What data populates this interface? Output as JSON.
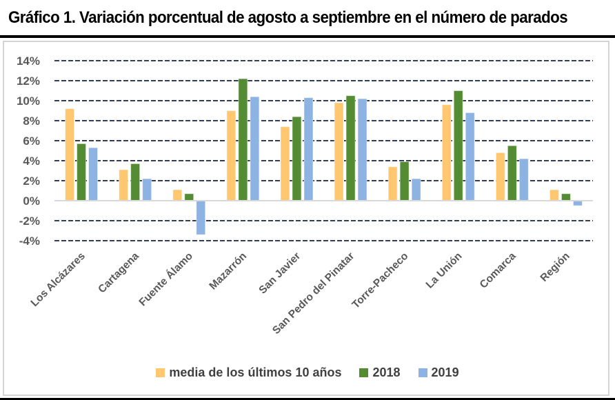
{
  "title": "Gráfico 1. Variación porcentual de agosto a septiembre en el número de parados",
  "chart_data": {
    "type": "bar",
    "title": "Gráfico 1. Variación porcentual de agosto a septiembre en el número de parados",
    "xlabel": "",
    "ylabel": "",
    "ylim": [
      -4,
      14
    ],
    "yticks": [
      14,
      12,
      10,
      8,
      6,
      4,
      2,
      0,
      -2,
      -4
    ],
    "ytick_labels": [
      "14%",
      "12%",
      "10%",
      "8%",
      "6%",
      "4%",
      "2%",
      "0%",
      "-2%",
      "-4%"
    ],
    "grid": true,
    "grid_style": "dashed",
    "legend_position": "bottom",
    "categories": [
      "Los Alcázares",
      "Cartagena",
      "Fuente Álamo",
      "Mazarrón",
      "San Javier",
      "San Pedro del Pinatar",
      "Torre-Pacheco",
      "La Unión",
      "Comarca",
      "Región"
    ],
    "series": [
      {
        "name": "media de los últimos 10 años",
        "color": "#FFC870",
        "values": [
          9.2,
          3.1,
          1.1,
          9.0,
          7.4,
          9.8,
          3.4,
          9.6,
          4.8,
          1.1
        ]
      },
      {
        "name": "2018",
        "color": "#548C34",
        "values": [
          5.7,
          3.7,
          0.7,
          12.2,
          8.4,
          10.5,
          3.9,
          11.0,
          5.5,
          0.7
        ]
      },
      {
        "name": "2019",
        "color": "#8DB3E2",
        "values": [
          5.3,
          2.2,
          -3.4,
          10.4,
          10.3,
          10.2,
          2.2,
          8.8,
          4.2,
          -0.5
        ]
      }
    ],
    "grid_color": "#2F3E56",
    "text_color": "#595959"
  }
}
